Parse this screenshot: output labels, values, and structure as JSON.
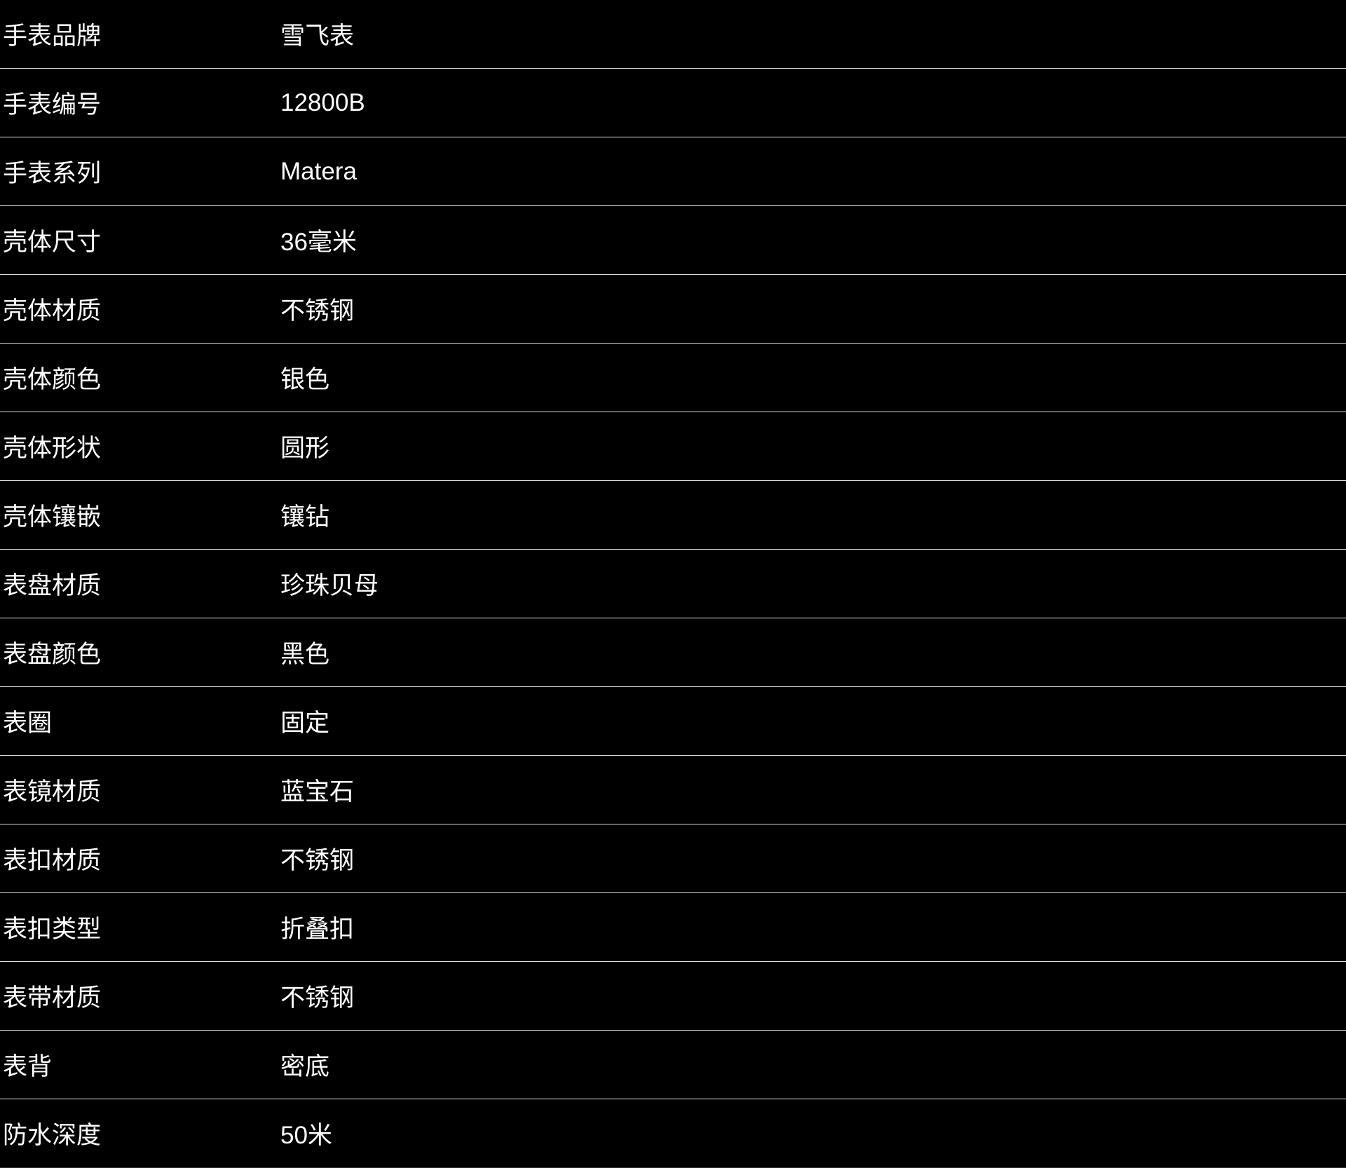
{
  "page": {
    "background_color": "#000000",
    "text_color": "#ffffff",
    "divider_color": "#ffffff"
  },
  "table": {
    "name": "watch-specifications",
    "rows": [
      {
        "label": "手表品牌",
        "value": "雪飞表"
      },
      {
        "label": "手表编号",
        "value": "12800B"
      },
      {
        "label": "手表系列",
        "value": "Matera"
      },
      {
        "label": "壳体尺寸",
        "value": "36毫米"
      },
      {
        "label": "壳体材质",
        "value": "不锈钢"
      },
      {
        "label": "壳体颜色",
        "value": "银色"
      },
      {
        "label": "壳体形状",
        "value": "圆形"
      },
      {
        "label": "壳体镶嵌",
        "value": "镶钻"
      },
      {
        "label": "表盘材质",
        "value": "珍珠贝母"
      },
      {
        "label": "表盘颜色",
        "value": "黑色"
      },
      {
        "label": "表圈",
        "value": "固定"
      },
      {
        "label": "表镜材质",
        "value": "蓝宝石"
      },
      {
        "label": "表扣材质",
        "value": "不锈钢"
      },
      {
        "label": "表扣类型",
        "value": "折叠扣"
      },
      {
        "label": "表带材质",
        "value": "不锈钢"
      },
      {
        "label": "表背",
        "value": "密底"
      },
      {
        "label": "防水深度",
        "value": "50米"
      }
    ]
  }
}
